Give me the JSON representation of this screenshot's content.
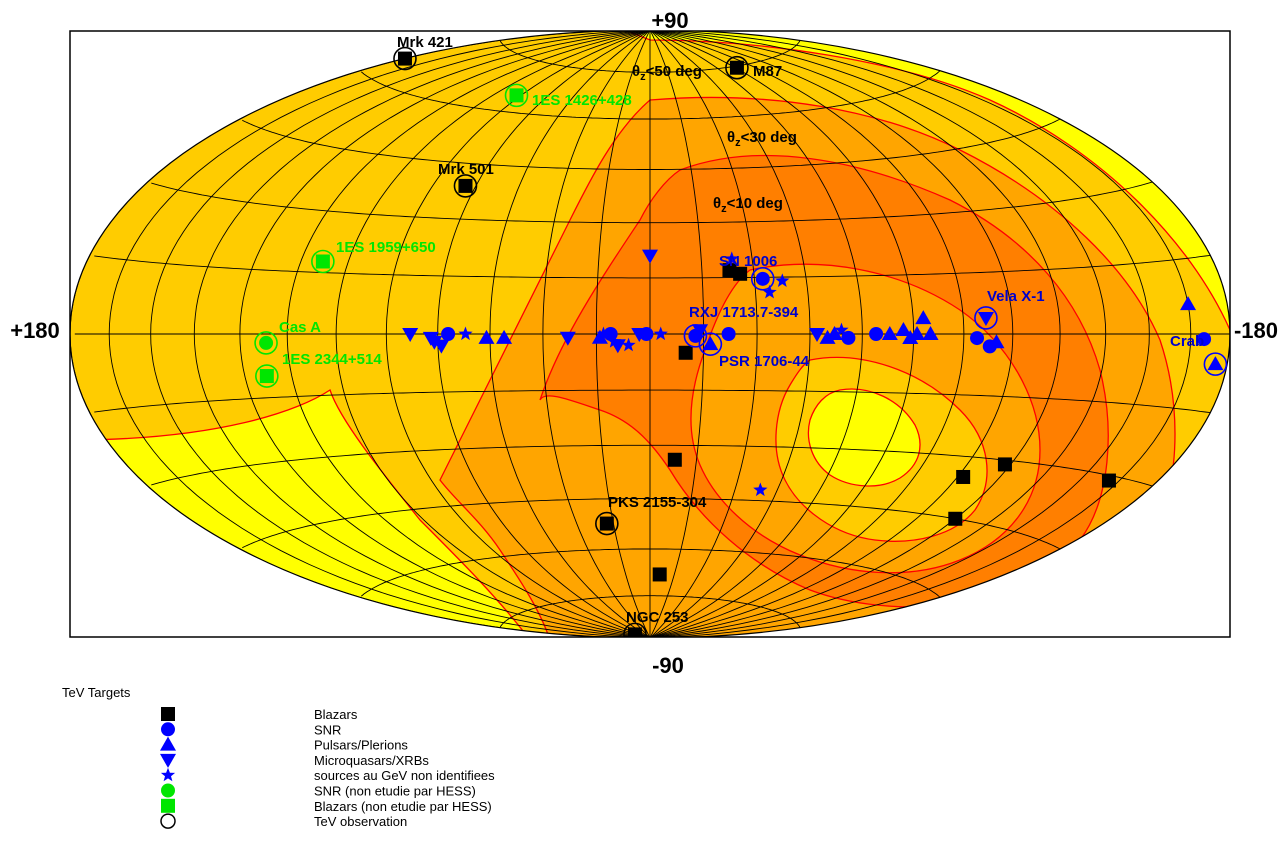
{
  "chart_data": {
    "type": "scatter",
    "projection": "hammer-aitoff",
    "grid": true,
    "axis_labels": {
      "top": "+90",
      "bottom": "-90",
      "left": "+180",
      "right": "-180"
    },
    "zenith_contours": [
      {
        "sub": "z",
        "text": "<50 deg"
      },
      {
        "sub": "z",
        "text": "<30 deg"
      },
      {
        "sub": "z",
        "text": "<10 deg"
      }
    ],
    "colors": {
      "sky": "#ffff00",
      "zone50": "#ffcc00",
      "zone30": "#ffa500",
      "zone10": "#ff7f00",
      "contour": "#ff0000",
      "hess": "#0000ff",
      "nonhess": "#00e600",
      "black": "#000000"
    },
    "legend": {
      "title": "TeV Targets",
      "items": [
        {
          "symbol": "square",
          "color": "#000000",
          "label": "Blazars"
        },
        {
          "symbol": "circle",
          "color": "#0000ff",
          "label": "SNR"
        },
        {
          "symbol": "triangle-up",
          "color": "#0000ff",
          "label": "Pulsars/Plerions"
        },
        {
          "symbol": "triangle-down",
          "color": "#0000ff",
          "label": "Microquasars/XRBs"
        },
        {
          "symbol": "star",
          "color": "#0000ff",
          "label": "sources au GeV non identifiees"
        },
        {
          "symbol": "circle",
          "color": "#00e600",
          "label": "SNR (non etudie par HESS)"
        },
        {
          "symbol": "square",
          "color": "#00e600",
          "label": "Blazars (non etudie par HESS)"
        },
        {
          "symbol": "ring",
          "color": "#000000",
          "label": "TeV observation"
        }
      ]
    },
    "labeled_sources": [
      {
        "name": "Mrk 421",
        "l": 179.8,
        "b": 65.0,
        "symbol": "square",
        "color": "#000000",
        "tev": true
      },
      {
        "name": "M87",
        "l": 283.8,
        "b": 74.5,
        "symbol": "square",
        "color": "#000000",
        "tev": true
      },
      {
        "name": "1ES 1426+428",
        "l": 77.5,
        "b": 64.9,
        "symbol": "square",
        "color": "#00e600",
        "tev": true
      },
      {
        "name": "Mrk 501",
        "l": 63.6,
        "b": 38.9,
        "symbol": "square",
        "color": "#000000",
        "tev": true
      },
      {
        "name": "1ES 1959+650",
        "l": 98.0,
        "b": 17.7,
        "symbol": "square",
        "color": "#00e600",
        "tev": true
      },
      {
        "name": "Cas A",
        "l": 111.7,
        "b": -2.1,
        "symbol": "circle",
        "color": "#00e600",
        "tev": true
      },
      {
        "name": "1ES 2344+514",
        "l": 112.9,
        "b": -9.9,
        "symbol": "square",
        "color": "#00e600",
        "tev": true
      },
      {
        "name": "SN 1006",
        "l": 327.6,
        "b": 14.6,
        "symbol": "circle",
        "color": "#0000ff",
        "tev": true
      },
      {
        "name": "RXJ 1713.7-394",
        "l": 347.3,
        "b": -0.5,
        "symbol": "circle",
        "color": "#0000ff",
        "tev": true
      },
      {
        "name": "PSR 1706-44",
        "l": 343.1,
        "b": -2.7,
        "symbol": "triangle-up",
        "color": "#0000ff",
        "tev": true
      },
      {
        "name": "Vela X-1",
        "l": 263.1,
        "b": 3.9,
        "symbol": "triangle-down",
        "color": "#0000ff",
        "tev": true
      },
      {
        "name": "Crab",
        "l": 184.6,
        "b": -5.8,
        "symbol": "triangle-up",
        "color": "#0000ff",
        "tev": true
      },
      {
        "name": "PKS 2155-304",
        "l": 17.7,
        "b": -52.2,
        "symbol": "square",
        "color": "#000000",
        "tev": true
      },
      {
        "name": "NGC 253",
        "l": 97.4,
        "b": -88.0,
        "symbol": "square",
        "color": "#000000",
        "tev": true
      }
    ],
    "other_sources": [
      {
        "l": 337,
        "b": 17,
        "symbol": "square",
        "color": "#000000"
      },
      {
        "l": 334,
        "b": 16,
        "symbol": "square",
        "color": "#000000"
      },
      {
        "l": 350,
        "b": -5,
        "symbol": "square",
        "color": "#000000"
      },
      {
        "l": 352,
        "b": -34,
        "symbol": "square",
        "color": "#000000"
      },
      {
        "l": 354,
        "b": -68,
        "symbol": "square",
        "color": "#000000"
      },
      {
        "l": 242,
        "b": -31,
        "symbol": "square",
        "color": "#000000"
      },
      {
        "l": 253,
        "b": -35,
        "symbol": "square",
        "color": "#000000"
      },
      {
        "l": 240,
        "b": -45,
        "symbol": "square",
        "color": "#000000"
      },
      {
        "l": 199,
        "b": -31,
        "symbol": "square",
        "color": "#000000"
      },
      {
        "l": 68,
        "b": 0,
        "symbol": "triangle-down",
        "color": "#0000ff"
      },
      {
        "l": 62,
        "b": -1,
        "symbol": "triangle-down",
        "color": "#0000ff"
      },
      {
        "l": 61,
        "b": -2,
        "symbol": "triangle-down",
        "color": "#0000ff"
      },
      {
        "l": 59,
        "b": -3,
        "symbol": "triangle-down",
        "color": "#0000ff"
      },
      {
        "l": 23,
        "b": -1,
        "symbol": "triangle-down",
        "color": "#0000ff"
      },
      {
        "l": 9,
        "b": -3,
        "symbol": "triangle-down",
        "color": "#0000ff"
      },
      {
        "l": 3,
        "b": 0,
        "symbol": "triangle-down",
        "color": "#0000ff"
      },
      {
        "l": 0,
        "b": 21,
        "symbol": "triangle-down",
        "color": "#0000ff"
      },
      {
        "l": 346,
        "b": 1,
        "symbol": "triangle-down",
        "color": "#0000ff"
      },
      {
        "l": 313,
        "b": 0,
        "symbol": "triangle-down",
        "color": "#0000ff"
      },
      {
        "l": 57,
        "b": 0,
        "symbol": "circle",
        "color": "#0000ff"
      },
      {
        "l": 11,
        "b": 0,
        "symbol": "circle",
        "color": "#0000ff"
      },
      {
        "l": 1,
        "b": 0,
        "symbol": "circle",
        "color": "#0000ff"
      },
      {
        "l": 338,
        "b": 0,
        "symbol": "circle",
        "color": "#0000ff"
      },
      {
        "l": 304,
        "b": -1,
        "symbol": "circle",
        "color": "#0000ff"
      },
      {
        "l": 296,
        "b": 0,
        "symbol": "circle",
        "color": "#0000ff"
      },
      {
        "l": 266,
        "b": -1,
        "symbol": "circle",
        "color": "#0000ff"
      },
      {
        "l": 262,
        "b": -3,
        "symbol": "circle",
        "color": "#0000ff"
      },
      {
        "l": 190,
        "b": -1,
        "symbol": "circle",
        "color": "#0000ff"
      },
      {
        "l": 46,
        "b": -1,
        "symbol": "triangle-up",
        "color": "#0000ff"
      },
      {
        "l": 41,
        "b": -1,
        "symbol": "triangle-up",
        "color": "#0000ff"
      },
      {
        "l": 14,
        "b": -1,
        "symbol": "triangle-up",
        "color": "#0000ff"
      },
      {
        "l": 310,
        "b": -1,
        "symbol": "triangle-up",
        "color": "#0000ff"
      },
      {
        "l": 308,
        "b": 0,
        "symbol": "triangle-up",
        "color": "#0000ff"
      },
      {
        "l": 292,
        "b": 0,
        "symbol": "triangle-up",
        "color": "#0000ff"
      },
      {
        "l": 288,
        "b": 1,
        "symbol": "triangle-up",
        "color": "#0000ff"
      },
      {
        "l": 286,
        "b": -1,
        "symbol": "triangle-up",
        "color": "#0000ff"
      },
      {
        "l": 284,
        "b": 0,
        "symbol": "triangle-up",
        "color": "#0000ff"
      },
      {
        "l": 280,
        "b": 0,
        "symbol": "triangle-up",
        "color": "#0000ff"
      },
      {
        "l": 282,
        "b": 4,
        "symbol": "triangle-up",
        "color": "#0000ff"
      },
      {
        "l": 260,
        "b": -2,
        "symbol": "triangle-up",
        "color": "#0000ff"
      },
      {
        "l": 195,
        "b": 6,
        "symbol": "triangle-up",
        "color": "#0000ff"
      },
      {
        "l": 52,
        "b": 0,
        "symbol": "star",
        "color": "#0000ff"
      },
      {
        "l": 13,
        "b": 0,
        "symbol": "star",
        "color": "#0000ff"
      },
      {
        "l": 10,
        "b": -2,
        "symbol": "star",
        "color": "#0000ff"
      },
      {
        "l": 6,
        "b": -3,
        "symbol": "star",
        "color": "#0000ff"
      },
      {
        "l": 357,
        "b": 0,
        "symbol": "star",
        "color": "#0000ff"
      },
      {
        "l": 336,
        "b": 20,
        "symbol": "star",
        "color": "#0000ff"
      },
      {
        "l": 326,
        "b": 11,
        "symbol": "star",
        "color": "#0000ff"
      },
      {
        "l": 322,
        "b": 14,
        "symbol": "star",
        "color": "#0000ff"
      },
      {
        "l": 306,
        "b": 1,
        "symbol": "star",
        "color": "#0000ff"
      },
      {
        "l": 321,
        "b": -42,
        "symbol": "star",
        "color": "#0000ff"
      }
    ]
  }
}
